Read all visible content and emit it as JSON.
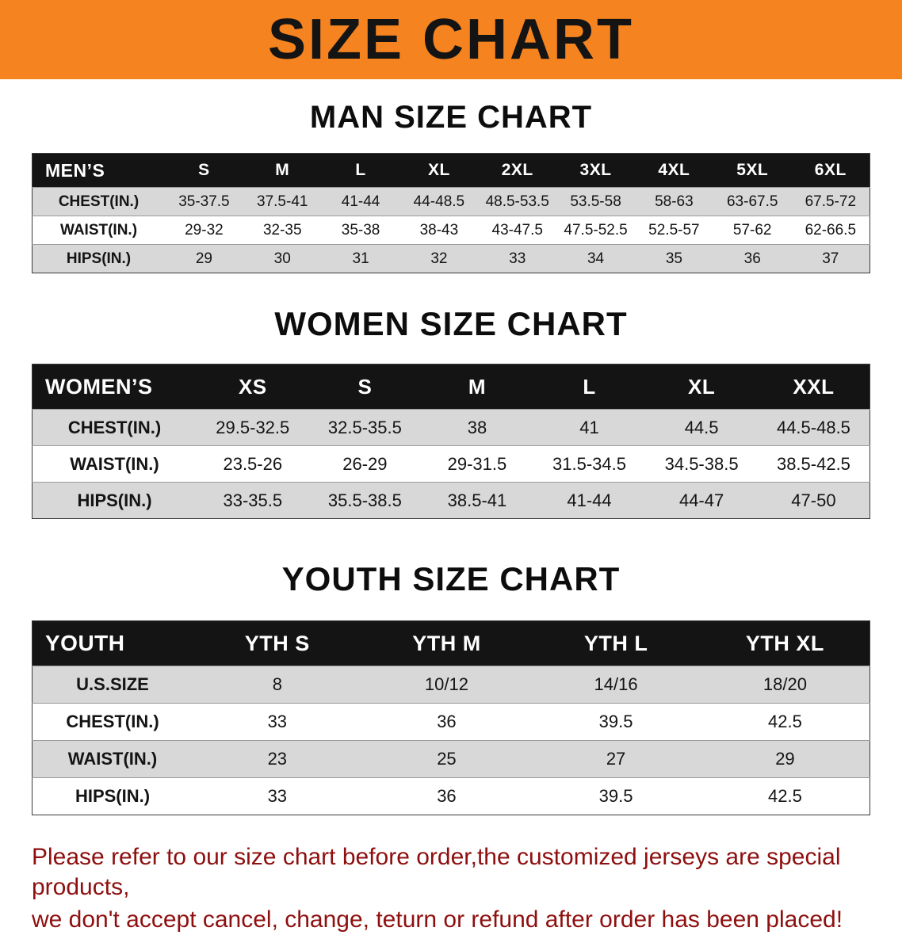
{
  "banner": {
    "title": "SIZE CHART"
  },
  "colors": {
    "banner_bg": "#F5831F",
    "header_row_bg": "#141414",
    "shaded_row_bg": "#d8d8d8",
    "notice_text": "#8e0f0f"
  },
  "chart_data": [
    {
      "type": "table",
      "title": "MAN SIZE CHART",
      "columns": [
        "MEN’S",
        "S",
        "M",
        "L",
        "XL",
        "2XL",
        "3XL",
        "4XL",
        "5XL",
        "6XL"
      ],
      "rows": [
        [
          "CHEST(IN.)",
          "35-37.5",
          "37.5-41",
          "41-44",
          "44-48.5",
          "48.5-53.5",
          "53.5-58",
          "58-63",
          "63-67.5",
          "67.5-72"
        ],
        [
          "WAIST(IN.)",
          "29-32",
          "32-35",
          "35-38",
          "38-43",
          "43-47.5",
          "47.5-52.5",
          "52.5-57",
          "57-62",
          "62-66.5"
        ],
        [
          "HIPS(IN.)",
          "29",
          "30",
          "31",
          "32",
          "33",
          "34",
          "35",
          "36",
          "37"
        ]
      ]
    },
    {
      "type": "table",
      "title": "WOMEN SIZE CHART",
      "columns": [
        "WOMEN’S",
        "XS",
        "S",
        "M",
        "L",
        "XL",
        "XXL"
      ],
      "rows": [
        [
          "CHEST(IN.)",
          "29.5-32.5",
          "32.5-35.5",
          "38",
          "41",
          "44.5",
          "44.5-48.5"
        ],
        [
          "WAIST(IN.)",
          "23.5-26",
          "26-29",
          "29-31.5",
          "31.5-34.5",
          "34.5-38.5",
          "38.5-42.5"
        ],
        [
          "HIPS(IN.)",
          "33-35.5",
          "35.5-38.5",
          "38.5-41",
          "41-44",
          "44-47",
          "47-50"
        ]
      ]
    },
    {
      "type": "table",
      "title": "YOUTH SIZE CHART",
      "columns": [
        "YOUTH",
        "YTH S",
        "YTH M",
        "YTH L",
        "YTH XL"
      ],
      "rows": [
        [
          "U.S.SIZE",
          "8",
          "10/12",
          "14/16",
          "18/20"
        ],
        [
          "CHEST(IN.)",
          "33",
          "36",
          "39.5",
          "42.5"
        ],
        [
          "WAIST(IN.)",
          "23",
          "25",
          "27",
          "29"
        ],
        [
          "HIPS(IN.)",
          "33",
          "36",
          "39.5",
          "42.5"
        ]
      ]
    }
  ],
  "footer": {
    "lines": [
      "Please refer to our size chart before order,the customized jerseys are special products,",
      "we don't accept cancel, change, teturn or refund after order has been placed!"
    ]
  }
}
